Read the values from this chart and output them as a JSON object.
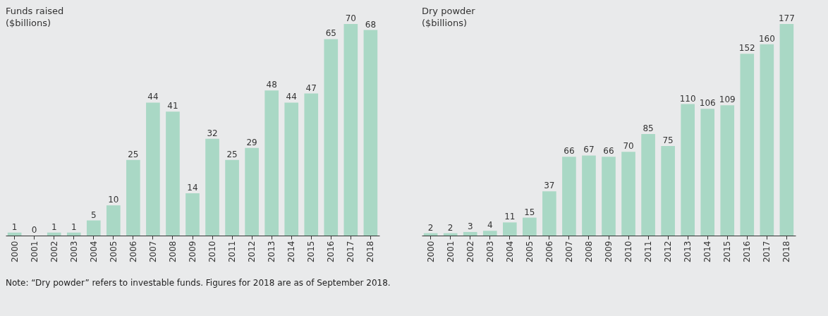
{
  "chart_data": [
    {
      "type": "bar",
      "title": "Funds raised\n($billions)",
      "categories": [
        "2000",
        "2001",
        "2002",
        "2003",
        "2004",
        "2005",
        "2006",
        "2007",
        "2008",
        "2009",
        "2010",
        "2011",
        "2012",
        "2013",
        "2014",
        "2015",
        "2016",
        "2017",
        "2018"
      ],
      "values": [
        1,
        0,
        1,
        1,
        5,
        10,
        25,
        44,
        41,
        14,
        32,
        25,
        29,
        48,
        44,
        47,
        65,
        70,
        68
      ],
      "color": "#a9d8c5",
      "data_labels": true,
      "grid": false
    },
    {
      "type": "bar",
      "title": "Dry powder\n($billions)",
      "categories": [
        "2000",
        "2001",
        "2002",
        "2003",
        "2004",
        "2005",
        "2006",
        "2007",
        "2008",
        "2009",
        "2010",
        "2011",
        "2012",
        "2013",
        "2014",
        "2015",
        "2016",
        "2017",
        "2018"
      ],
      "values": [
        2,
        2,
        3,
        4,
        11,
        15,
        37,
        66,
        67,
        66,
        70,
        85,
        75,
        110,
        106,
        109,
        152,
        160,
        177
      ],
      "color": "#a9d8c5",
      "data_labels": true,
      "grid": false,
      "annotations": [
        "Note: “Dry powder” refers to investable funds. Figures for 2018 are as of September 2018."
      ]
    }
  ]
}
